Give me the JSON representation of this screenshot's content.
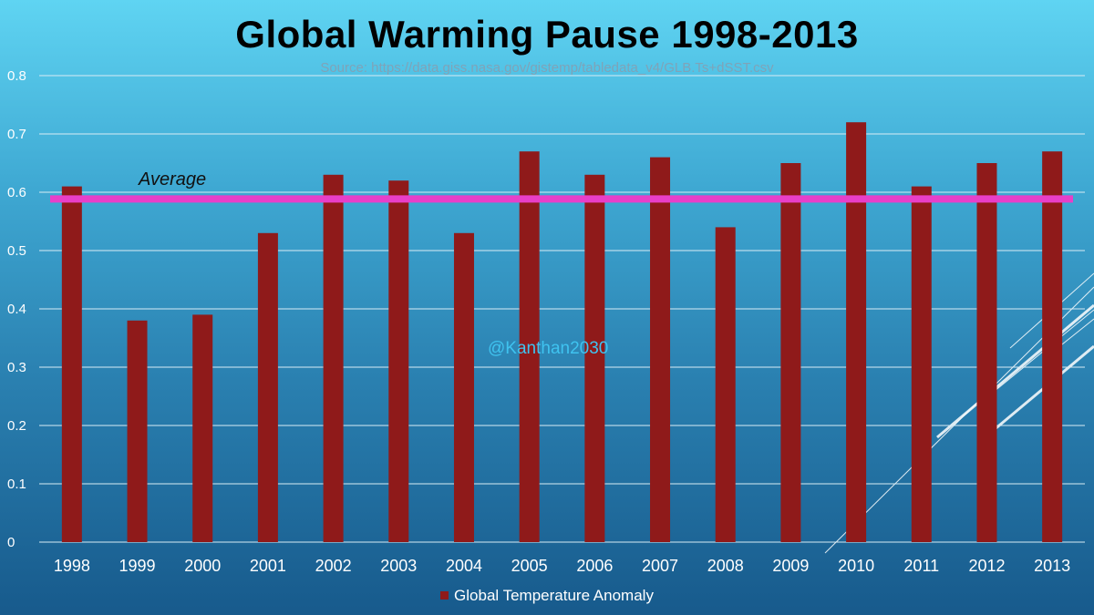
{
  "chart_data": {
    "type": "bar",
    "title": "Global Warming Pause 1998-2013",
    "source": "Source: https://data.giss.nasa.gov/gistemp/tabledata_v4/GLB.Ts+dSST.csv",
    "categories": [
      "1998",
      "1999",
      "2000",
      "2001",
      "2002",
      "2003",
      "2004",
      "2005",
      "2006",
      "2007",
      "2008",
      "2009",
      "2010",
      "2011",
      "2012",
      "2013"
    ],
    "series": [
      {
        "name": "Global Temperature Anomaly",
        "values": [
          0.61,
          0.38,
          0.39,
          0.53,
          0.63,
          0.62,
          0.53,
          0.67,
          0.63,
          0.66,
          0.54,
          0.65,
          0.72,
          0.61,
          0.65,
          0.67
        ]
      }
    ],
    "ylim": [
      0,
      0.8
    ],
    "yticks": [
      "0",
      "0.1",
      "0.2",
      "0.3",
      "0.4",
      "0.5",
      "0.6",
      "0.7",
      "0.8"
    ],
    "average": {
      "label": "Average",
      "value": 0.59
    },
    "grid": true,
    "legend_position": "bottom",
    "watermark": "@Kanthan2030",
    "colors": {
      "bar": "#8f1a1a",
      "average_line": "#e83fc8",
      "grid": "#d8ecf5"
    }
  }
}
